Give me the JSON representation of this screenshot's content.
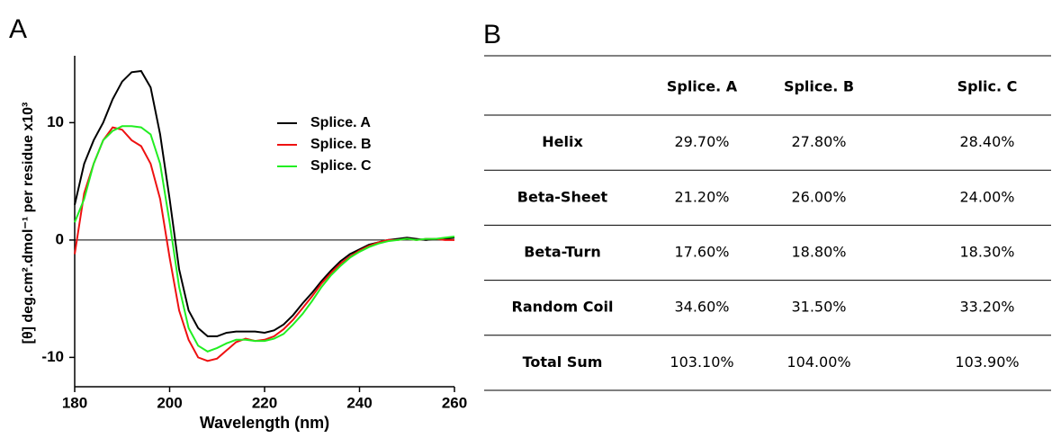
{
  "chart_data": {
    "type": "line",
    "panel_label": "A",
    "xlabel": "Wavelength (nm)",
    "ylabel": "[θ] deg.cm².dmol⁻¹ per residue x10³",
    "x": [
      180,
      182,
      184,
      186,
      188,
      190,
      192,
      194,
      196,
      198,
      200,
      202,
      204,
      206,
      208,
      210,
      212,
      214,
      216,
      218,
      220,
      222,
      224,
      226,
      228,
      230,
      232,
      234,
      236,
      238,
      240,
      242,
      244,
      246,
      248,
      250,
      252,
      254,
      256,
      258,
      260
    ],
    "series": [
      {
        "name": "Splice. A",
        "color": "#000000",
        "values": [
          3.0,
          6.5,
          8.5,
          10.0,
          12.0,
          13.5,
          14.3,
          14.4,
          13.0,
          9.0,
          3.5,
          -2.5,
          -6.0,
          -7.5,
          -8.2,
          -8.2,
          -7.9,
          -7.8,
          -7.8,
          -7.8,
          -7.9,
          -7.7,
          -7.2,
          -6.4,
          -5.4,
          -4.5,
          -3.5,
          -2.6,
          -1.8,
          -1.2,
          -0.8,
          -0.4,
          -0.2,
          0,
          0.1,
          0.2,
          0.1,
          0,
          0.1,
          0.1,
          0.2
        ]
      },
      {
        "name": "Splice. B",
        "color": "#ee1111",
        "values": [
          -1.2,
          4.0,
          6.5,
          8.5,
          9.6,
          9.4,
          8.5,
          8.0,
          6.5,
          3.5,
          -1.5,
          -6.0,
          -8.5,
          -10.0,
          -10.3,
          -10.1,
          -9.4,
          -8.7,
          -8.4,
          -8.6,
          -8.5,
          -8.2,
          -7.6,
          -6.8,
          -5.8,
          -4.8,
          -3.7,
          -2.8,
          -2.0,
          -1.4,
          -0.9,
          -0.5,
          -0.2,
          0,
          0,
          0.1,
          0,
          0.1,
          0.1,
          0,
          0
        ]
      },
      {
        "name": "Splice. C",
        "color": "#22ee22",
        "values": [
          1.5,
          3.5,
          6.5,
          8.5,
          9.3,
          9.7,
          9.7,
          9.6,
          9.0,
          6.5,
          1.5,
          -4.0,
          -7.5,
          -9.0,
          -9.5,
          -9.2,
          -8.8,
          -8.5,
          -8.5,
          -8.6,
          -8.6,
          -8.4,
          -8.0,
          -7.2,
          -6.3,
          -5.2,
          -4.0,
          -3.0,
          -2.2,
          -1.5,
          -1.0,
          -0.6,
          -0.3,
          -0.1,
          0,
          0.1,
          0,
          0.1,
          0.1,
          0.2,
          0.3
        ]
      }
    ],
    "xlim": [
      180,
      260
    ],
    "xticks": [
      180,
      200,
      220,
      240,
      260
    ],
    "ylim": [
      -12.5,
      15.7
    ],
    "yticks": [
      -10,
      0,
      10
    ]
  },
  "table": {
    "panel_label": "B",
    "columns": [
      "Splice. A",
      "Splice. B",
      "Splic. C"
    ],
    "rows": [
      {
        "label": "Helix",
        "values": [
          "29.70%",
          "27.80%",
          "28.40%"
        ]
      },
      {
        "label": "Beta-Sheet",
        "values": [
          "21.20%",
          "26.00%",
          "24.00%"
        ]
      },
      {
        "label": "Beta-Turn",
        "values": [
          "17.60%",
          "18.80%",
          "18.30%"
        ]
      },
      {
        "label": "Random Coil",
        "values": [
          "34.60%",
          "31.50%",
          "33.20%"
        ]
      },
      {
        "label": "Total Sum",
        "values": [
          "103.10%",
          "104.00%",
          "103.90%"
        ]
      }
    ]
  }
}
